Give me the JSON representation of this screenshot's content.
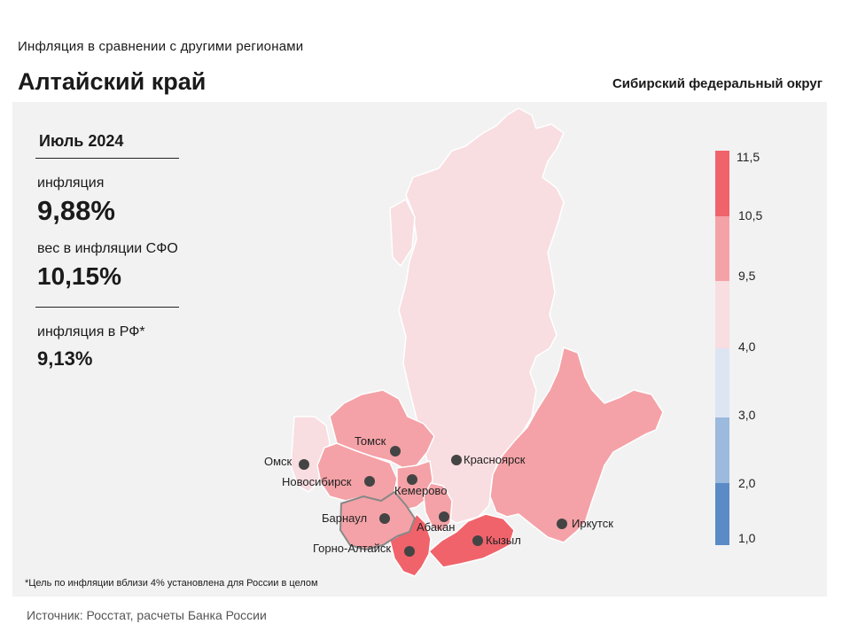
{
  "header": {
    "subtitle": "Инфляция  в сравнении  с другими  регионами",
    "region": "Алтайский край",
    "district": "Сибирский федеральный округ"
  },
  "stats": {
    "period": "Июль 2024",
    "inflation_label": "инфляция",
    "inflation_value": "9,88%",
    "weight_label": "вес в инфляции  СФО",
    "weight_value": "10,15%",
    "rf_label": "инфляция  в РФ*",
    "rf_value": "9,13%"
  },
  "footnote": "*Цель по инфляции вблизи 4% установлена для России в целом",
  "source": "Источник: Росстат, расчеты Банка России",
  "legend": {
    "ticks": [
      "11,5",
      "10,5",
      "9,5",
      "4,0",
      "3,0",
      "2,0",
      "1,0"
    ],
    "colors": [
      "#f0636b",
      "#f4a2a7",
      "#f8dde1",
      "#dde5f3",
      "#9cb9de",
      "#5b8bc7"
    ]
  },
  "colors": {
    "selected_border": "#888888",
    "region_border": "#ffffff",
    "panel_bg": "#f2f2f2"
  },
  "cities": [
    {
      "name": "Томск"
    },
    {
      "name": "Омск"
    },
    {
      "name": "Красноярск"
    },
    {
      "name": "Новосибирск"
    },
    {
      "name": "Кемерово"
    },
    {
      "name": "Барнаул"
    },
    {
      "name": "Абакан"
    },
    {
      "name": "Кызыл"
    },
    {
      "name": "Иркутск"
    },
    {
      "name": "Горно-Алтайск"
    }
  ]
}
